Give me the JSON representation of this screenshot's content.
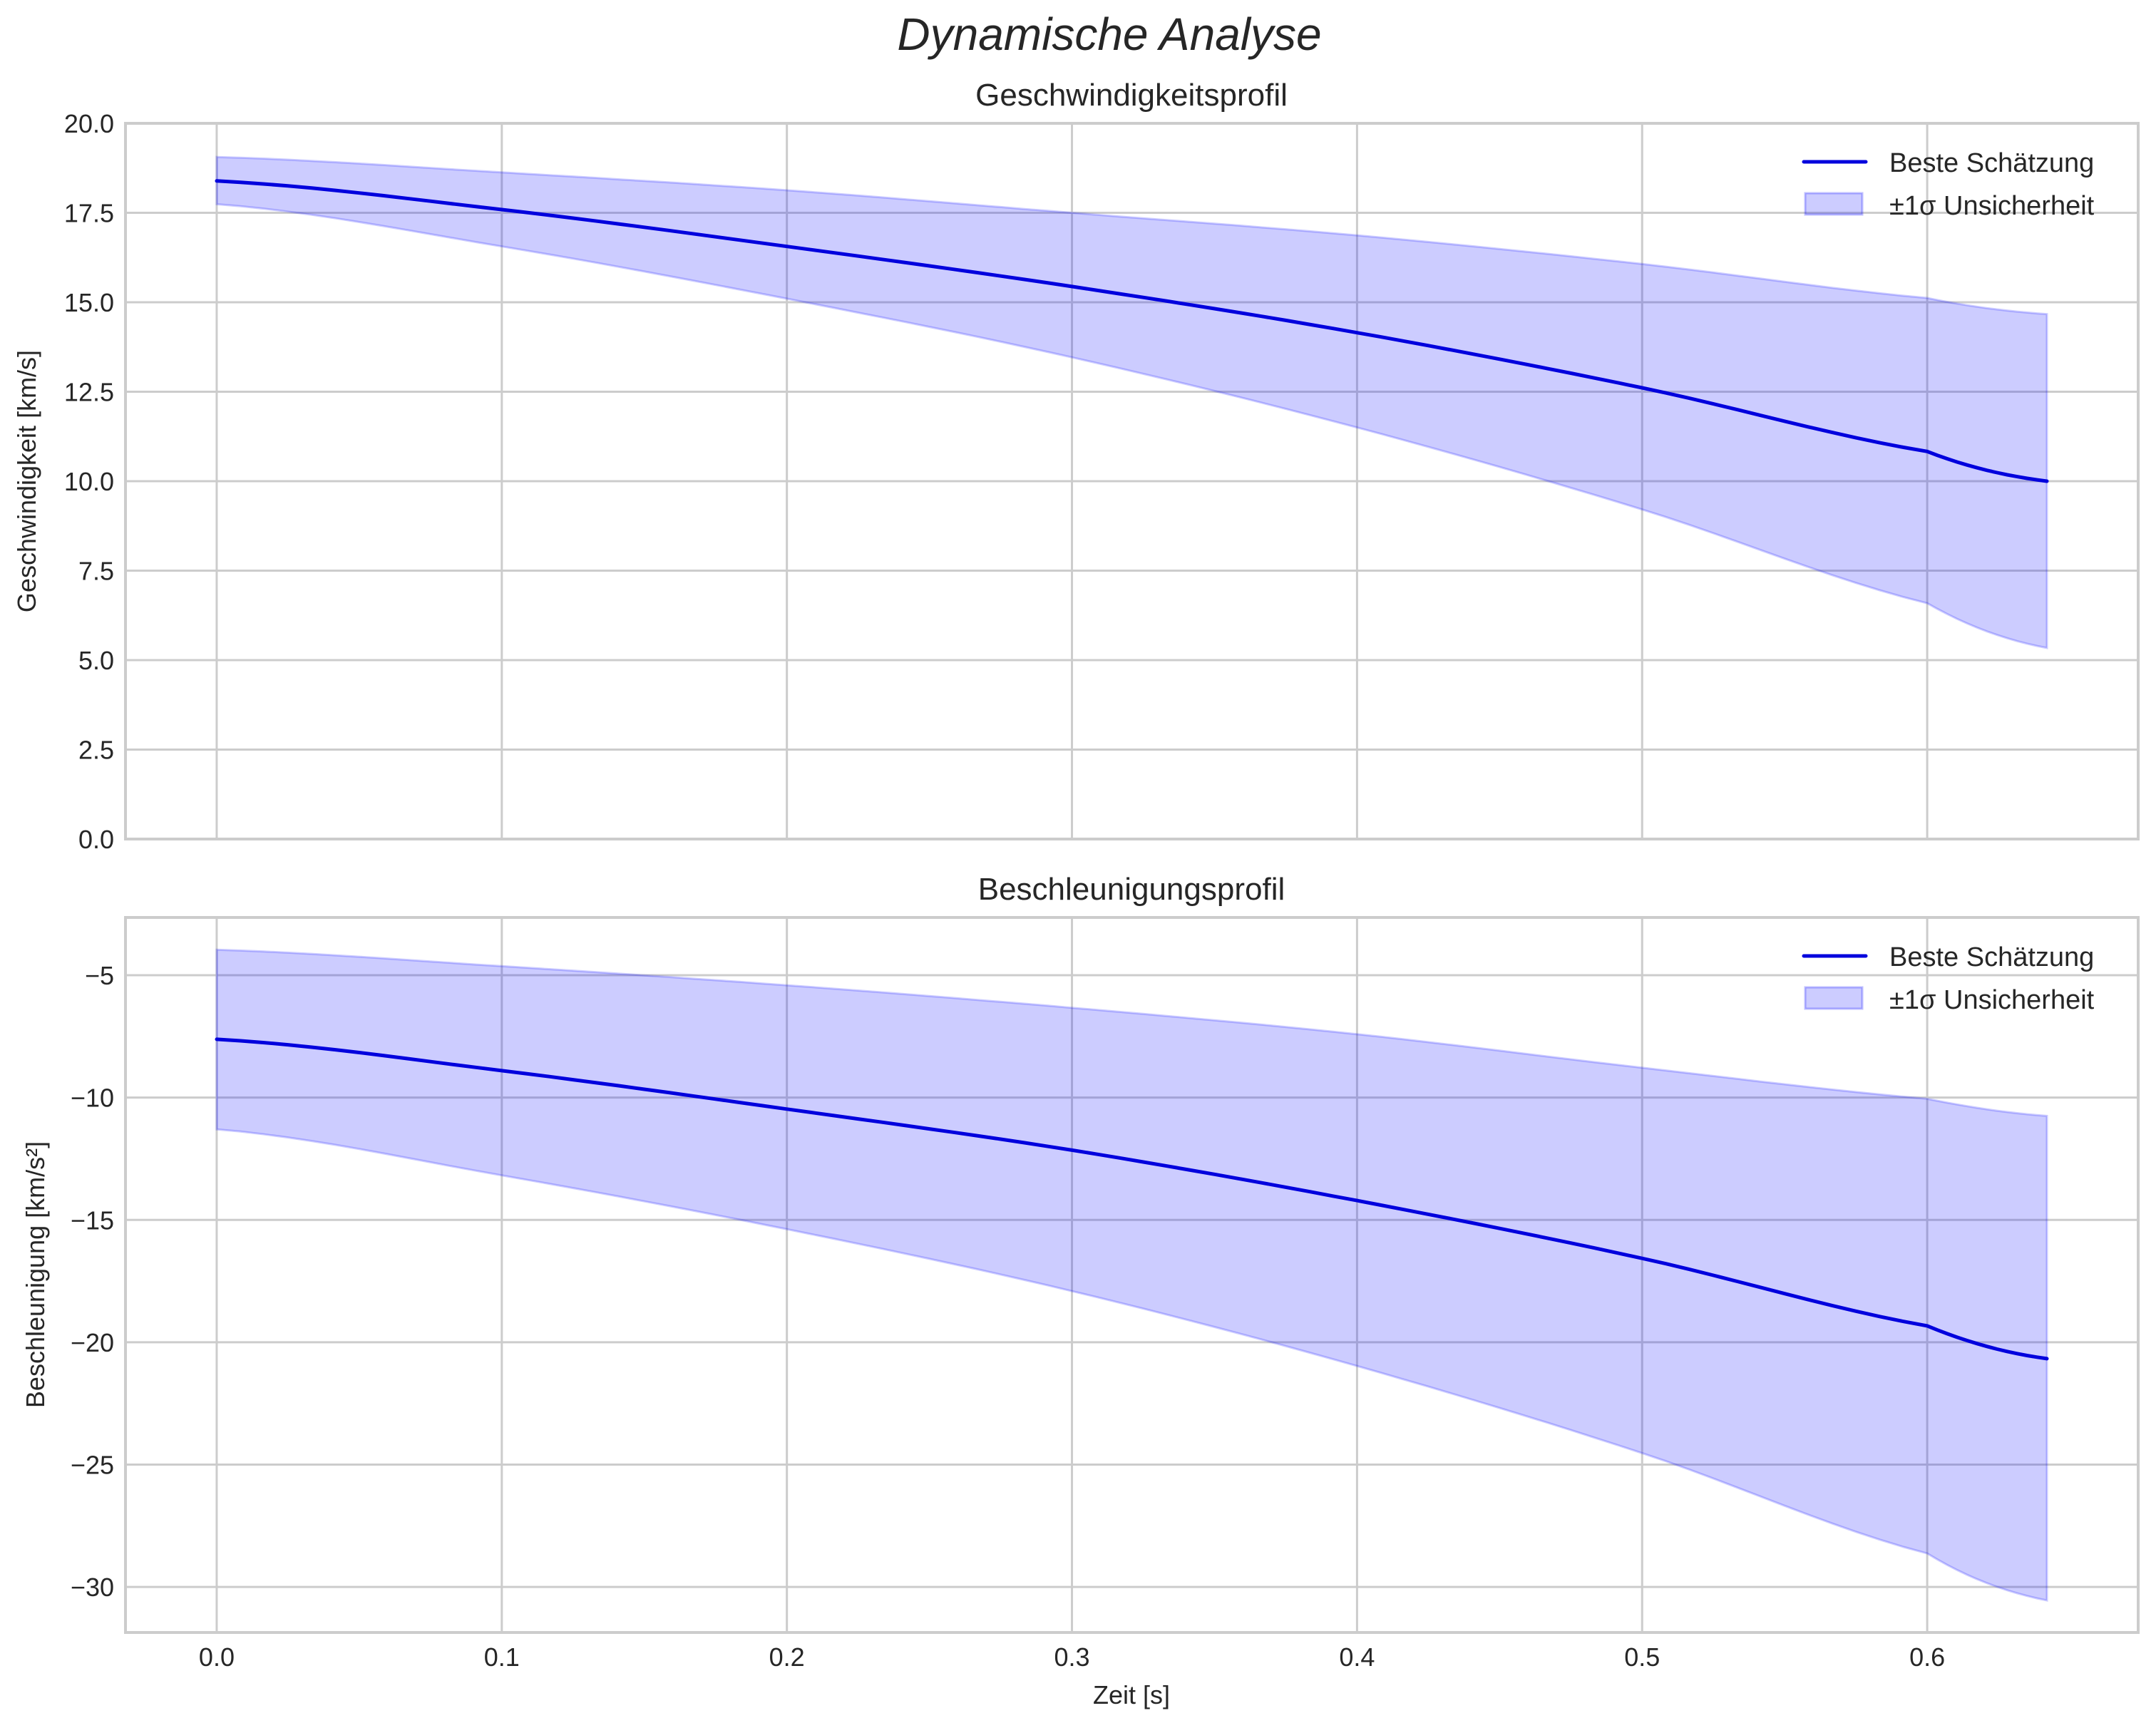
{
  "figure": {
    "suptitle": "Dynamische Analyse",
    "xlabel": "Zeit [s]",
    "colors": {
      "line": "#0000dd",
      "band_fill": "#0000ff",
      "band_fill_opacity": 0.2,
      "grid": "#cccccc",
      "text": "#262626"
    }
  },
  "chart_data": [
    {
      "type": "line",
      "title": "Geschwindigkeitsprofil",
      "xlabel": "",
      "ylabel": "Geschwindigkeit [km/s]",
      "xlim": [
        -0.032,
        0.674
      ],
      "ylim": [
        0.0,
        20.0
      ],
      "xticks": [
        0.0,
        0.1,
        0.2,
        0.3,
        0.4,
        0.5,
        0.6
      ],
      "xtick_labels_visible": false,
      "yticks": [
        0.0,
        2.5,
        5.0,
        7.5,
        10.0,
        12.5,
        15.0,
        17.5,
        20.0
      ],
      "ytick_labels": [
        "0.0",
        "2.5",
        "5.0",
        "7.5",
        "10.0",
        "12.5",
        "15.0",
        "17.5",
        "20.0"
      ],
      "grid": true,
      "legend_position": "upper right",
      "legend": [
        "Beste Schätzung",
        "±1σ Unsicherheit"
      ],
      "x": [
        0.0,
        0.1,
        0.2,
        0.3,
        0.4,
        0.5,
        0.6,
        0.642
      ],
      "series": [
        {
          "name": "Beste Schätzung",
          "kind": "line",
          "values": [
            18.39,
            17.59,
            16.56,
            15.44,
            14.15,
            12.61,
            10.83,
            10.0
          ]
        },
        {
          "name": "±1σ Unsicherheit (upper)",
          "kind": "band-upper",
          "values": [
            19.06,
            18.63,
            18.13,
            17.5,
            16.87,
            16.07,
            15.12,
            14.67
          ]
        },
        {
          "name": "±1σ Unsicherheit (lower)",
          "kind": "band-lower",
          "values": [
            17.74,
            16.56,
            15.1,
            13.46,
            11.5,
            9.21,
            6.59,
            5.34
          ]
        }
      ]
    },
    {
      "type": "line",
      "title": "Beschleunigungsprofil",
      "xlabel": "Zeit [s]",
      "ylabel": "Beschleunigung [km/s²]",
      "xlim": [
        -0.032,
        0.674
      ],
      "ylim": [
        -31.86,
        -2.64
      ],
      "xticks": [
        0.0,
        0.1,
        0.2,
        0.3,
        0.4,
        0.5,
        0.6
      ],
      "xtick_labels": [
        "0.0",
        "0.1",
        "0.2",
        "0.3",
        "0.4",
        "0.5",
        "0.6"
      ],
      "yticks": [
        -30,
        -25,
        -20,
        -15,
        -10,
        -5
      ],
      "ytick_labels": [
        "−30",
        "−25",
        "−20",
        "−15",
        "−10",
        "−5"
      ],
      "grid": true,
      "legend_position": "upper right",
      "legend": [
        "Beste Schätzung",
        "±1σ Unsicherheit"
      ],
      "x": [
        0.0,
        0.1,
        0.2,
        0.3,
        0.4,
        0.5,
        0.6,
        0.642
      ],
      "series": [
        {
          "name": "Beste Schätzung",
          "kind": "line",
          "values": [
            -7.62,
            -8.9,
            -10.47,
            -12.15,
            -14.21,
            -16.57,
            -19.33,
            -20.67
          ]
        },
        {
          "name": "±1σ Unsicherheit (upper)",
          "kind": "band-upper",
          "values": [
            -3.96,
            -4.63,
            -5.41,
            -6.33,
            -7.41,
            -8.78,
            -10.05,
            -10.75
          ]
        },
        {
          "name": "±1σ Unsicherheit (lower)",
          "kind": "band-lower",
          "values": [
            -11.3,
            -13.18,
            -15.38,
            -17.91,
            -20.97,
            -24.53,
            -28.63,
            -30.55
          ]
        }
      ]
    }
  ]
}
